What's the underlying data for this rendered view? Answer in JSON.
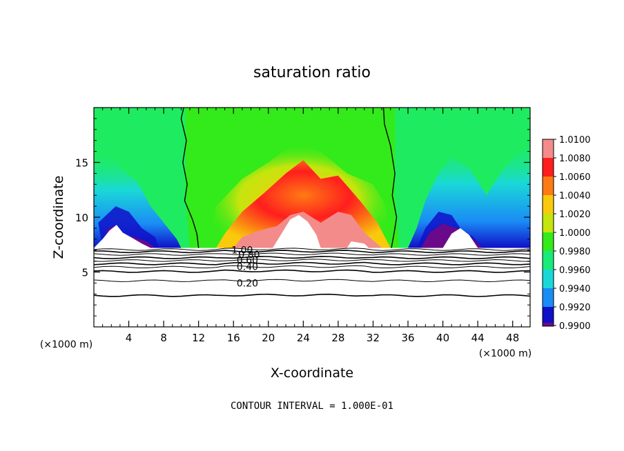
{
  "chart_data": {
    "type": "heatmap",
    "title": "saturation ratio",
    "xlabel": "X-coordinate",
    "ylabel": "Z-coordinate",
    "x_unit_left": "(×1000 m)",
    "x_unit_right": "(×1000 m)",
    "xlim": [
      0,
      50
    ],
    "ylim": [
      0,
      20
    ],
    "xticks": [
      4,
      8,
      12,
      16,
      20,
      24,
      28,
      32,
      36,
      40,
      44,
      48
    ],
    "yticks": [
      5,
      10,
      15
    ],
    "colorbar": {
      "levels": [
        1.01,
        1.008,
        1.006,
        1.004,
        1.002,
        1.0,
        0.998,
        0.996,
        0.994,
        0.992,
        0.99
      ],
      "labels": [
        "1.0100",
        "1.0080",
        "1.0060",
        "1.0040",
        "1.0020",
        "1.0000",
        "0.9980",
        "0.9960",
        "0.9940",
        "0.9920",
        "0.9900"
      ],
      "colors": [
        "#f38b8b",
        "#ff1e1e",
        "#ff7a14",
        "#f9c90c",
        "#c4e50d",
        "#33ea1a",
        "#19eb78",
        "#1ad8d8",
        "#1a8cf5",
        "#1010c8",
        "#6a0a8a"
      ]
    },
    "contour_labels": [
      "1.00",
      "0.80",
      "0.60",
      "0.40",
      "0.20"
    ],
    "cloud_base_z": 7.2,
    "footer": "CONTOUR INTERVAL = 1.000E-01"
  }
}
